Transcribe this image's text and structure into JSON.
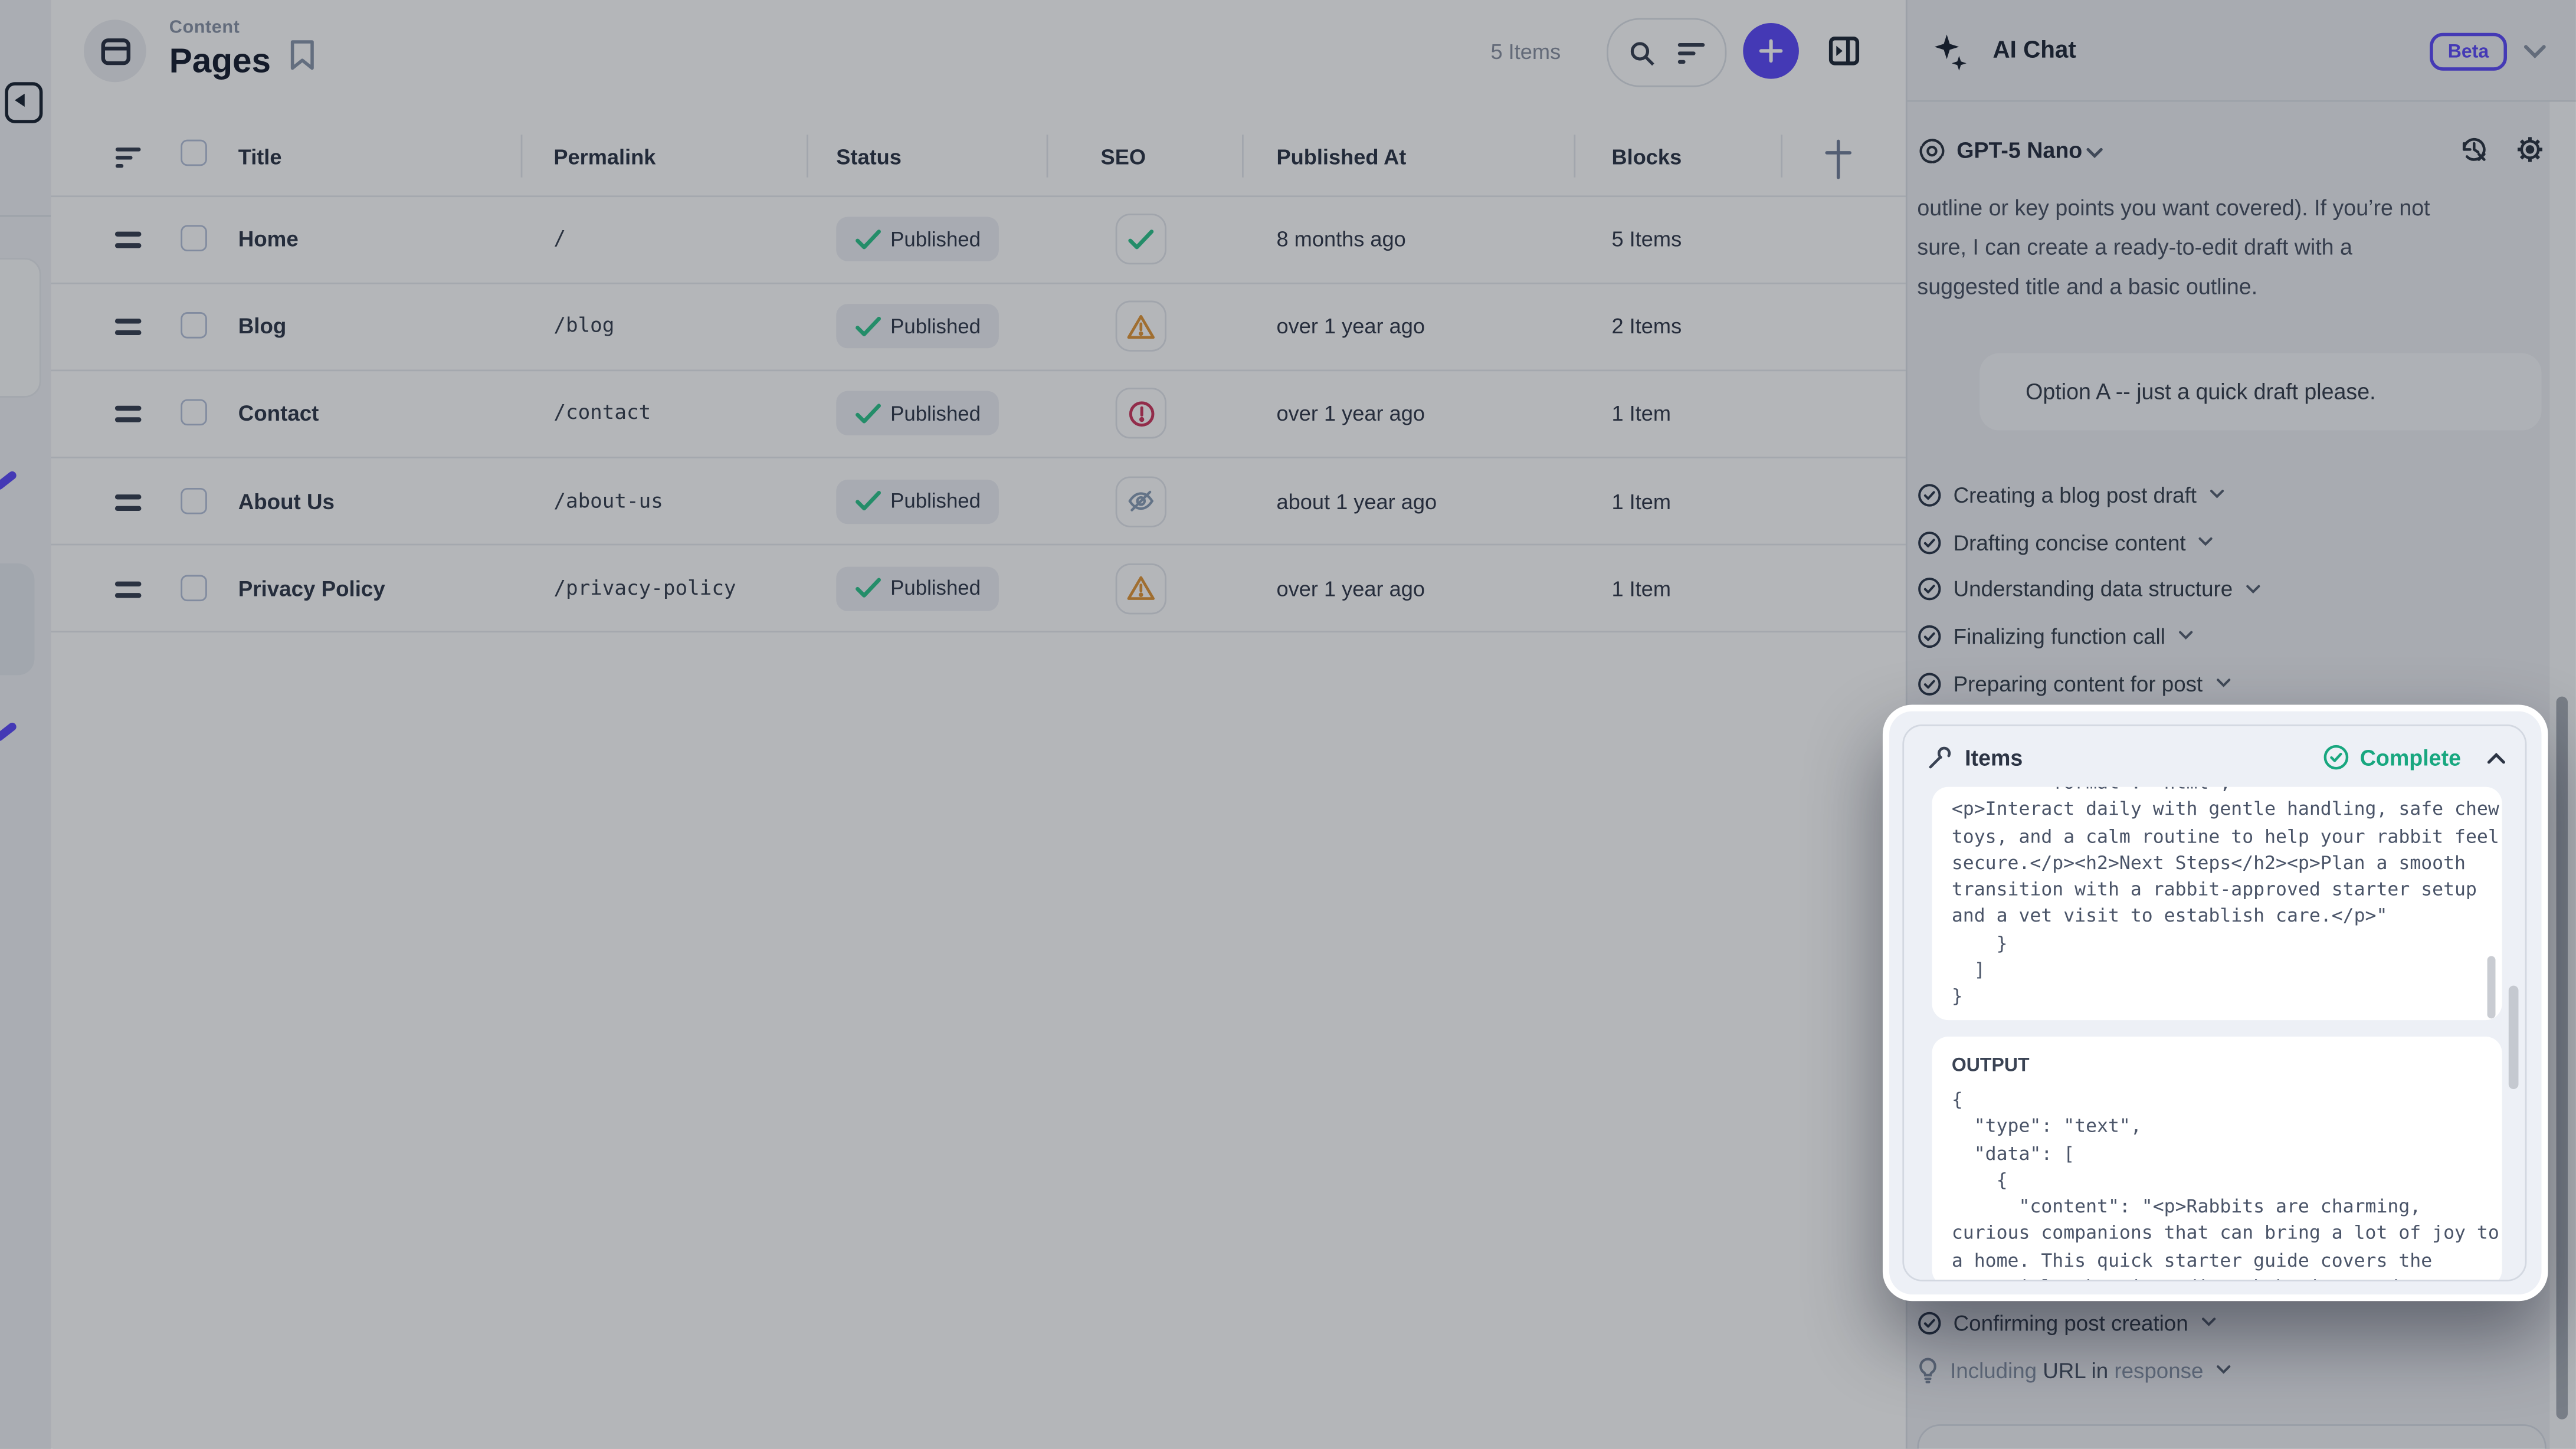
{
  "header": {
    "section_label": "Content",
    "title": "Pages",
    "items_count": "5 Items"
  },
  "table": {
    "columns": [
      "Title",
      "Permalink",
      "Status",
      "SEO",
      "Published At",
      "Blocks"
    ],
    "rows": [
      {
        "title": "Home",
        "permalink": "/",
        "status": "Published",
        "seo": "ok",
        "published_at": "8 months ago",
        "blocks": "5 Items"
      },
      {
        "title": "Blog",
        "permalink": "/blog",
        "status": "Published",
        "seo": "warning",
        "published_at": "over 1 year ago",
        "blocks": "2 Items"
      },
      {
        "title": "Contact",
        "permalink": "/contact",
        "status": "Published",
        "seo": "error",
        "published_at": "over 1 year ago",
        "blocks": "1 Item"
      },
      {
        "title": "About Us",
        "permalink": "/about-us",
        "status": "Published",
        "seo": "hidden",
        "published_at": "about 1 year ago",
        "blocks": "1 Item"
      },
      {
        "title": "Privacy Policy",
        "permalink": "/privacy-policy",
        "status": "Published",
        "seo": "warning",
        "published_at": "over 1 year ago",
        "blocks": "1 Item"
      }
    ]
  },
  "ai_panel": {
    "title": "AI Chat",
    "beta_badge": "Beta",
    "model": "GPT-5 Nano",
    "assistant_message": "outline or key points you want covered). If you’re not\nsure, I can create a ready-to-edit draft with a\nsuggested title and a basic outline.",
    "user_message": "Option A -- just a quick draft please.",
    "steps": [
      {
        "label": "Creating a blog post draft",
        "icon": "check-circle"
      },
      {
        "label": "Drafting concise content",
        "icon": "check-circle"
      },
      {
        "label": "Understanding data structure",
        "icon": "check-circle"
      },
      {
        "label": "Finalizing function call",
        "icon": "check-circle"
      },
      {
        "label": "Preparing content for post",
        "icon": "check-circle"
      }
    ],
    "bottom_steps": [
      {
        "label": "Confirming post creation",
        "icon": "check-circle"
      },
      {
        "segments": [
          {
            "text": "Including ",
            "tone": "muted"
          },
          {
            "text": "URL in ",
            "tone": "strong"
          },
          {
            "text": "response",
            "tone": "muted"
          }
        ],
        "icon": "lightbulb"
      }
    ],
    "tool_popup": {
      "name": "Items",
      "status": "Complete",
      "input_clipped_line": "        \"format\": \"html\",",
      "input_code": "<p>Interact daily with gentle handling, safe chew\ntoys, and a calm routine to help your rabbit feel\nsecure.</p><h2>Next Steps</h2><p>Plan a smooth\ntransition with a rabbit-approved starter setup\nand a vet visit to establish care.</p>\"\n    }\n  ]\n}",
      "output_label": "OUTPUT",
      "output_code": "{\n  \"type\": \"text\",\n  \"data\": [\n    {\n      \"content\": \"<p>Rabbits are charming,\ncurious companions that can bring a lot of joy to\na home. This quick starter guide covers the",
      "output_clipped_line": "essentials: housing, diet, behavior, and care"
    }
  },
  "colors": {
    "accent": "#5f4dfa",
    "success": "#31c48d",
    "complete": "#18a77f",
    "warning": "#e2993b",
    "danger": "#cf3a60",
    "hidden_icon": "#8ba0b8"
  }
}
